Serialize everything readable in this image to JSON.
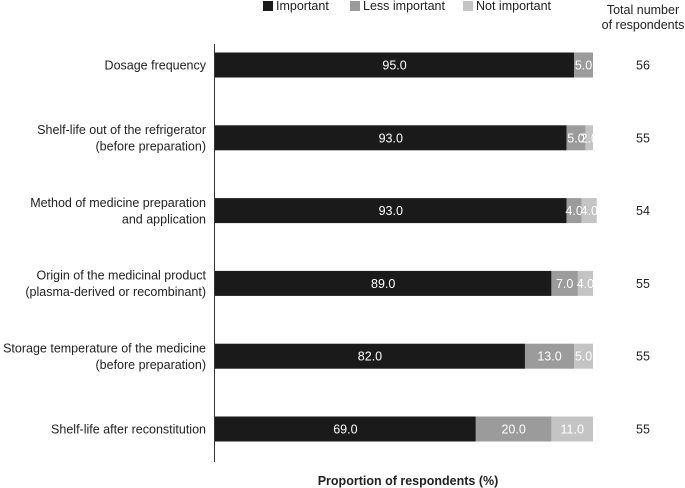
{
  "chart_data": {
    "type": "bar",
    "orientation": "horizontal",
    "stacked": true,
    "categories": [
      [
        "Dosage frequency"
      ],
      [
        "Shelf-life out of the refrigerator",
        "(before preparation)"
      ],
      [
        "Method of medicine preparation",
        "and application"
      ],
      [
        "Origin of the medicinal product",
        "(plasma-derived or recombinant)"
      ],
      [
        "Storage temperature of the medicine",
        "(before preparation)"
      ],
      [
        "Shelf-life after reconstitution"
      ]
    ],
    "series": [
      {
        "name": "Important",
        "color": "#1a1a1a",
        "values": [
          95.0,
          93.0,
          93.0,
          89.0,
          82.0,
          69.0
        ]
      },
      {
        "name": "Less important",
        "color": "#9b9b9b",
        "values": [
          5.0,
          5.0,
          4.0,
          7.0,
          13.0,
          20.0
        ]
      },
      {
        "name": "Not important",
        "color": "#c4c4c4",
        "values": [
          0.0,
          2.0,
          4.0,
          4.0,
          5.0,
          11.0
        ]
      }
    ],
    "respondents_header": [
      "Total number",
      "of respondents"
    ],
    "respondents": [
      "56",
      "55",
      "54",
      "55",
      "55",
      "55"
    ],
    "xlabel": "Proportion of respondents (%)",
    "xlim": [
      0,
      100
    ],
    "grid": false,
    "legend_position": "top"
  }
}
